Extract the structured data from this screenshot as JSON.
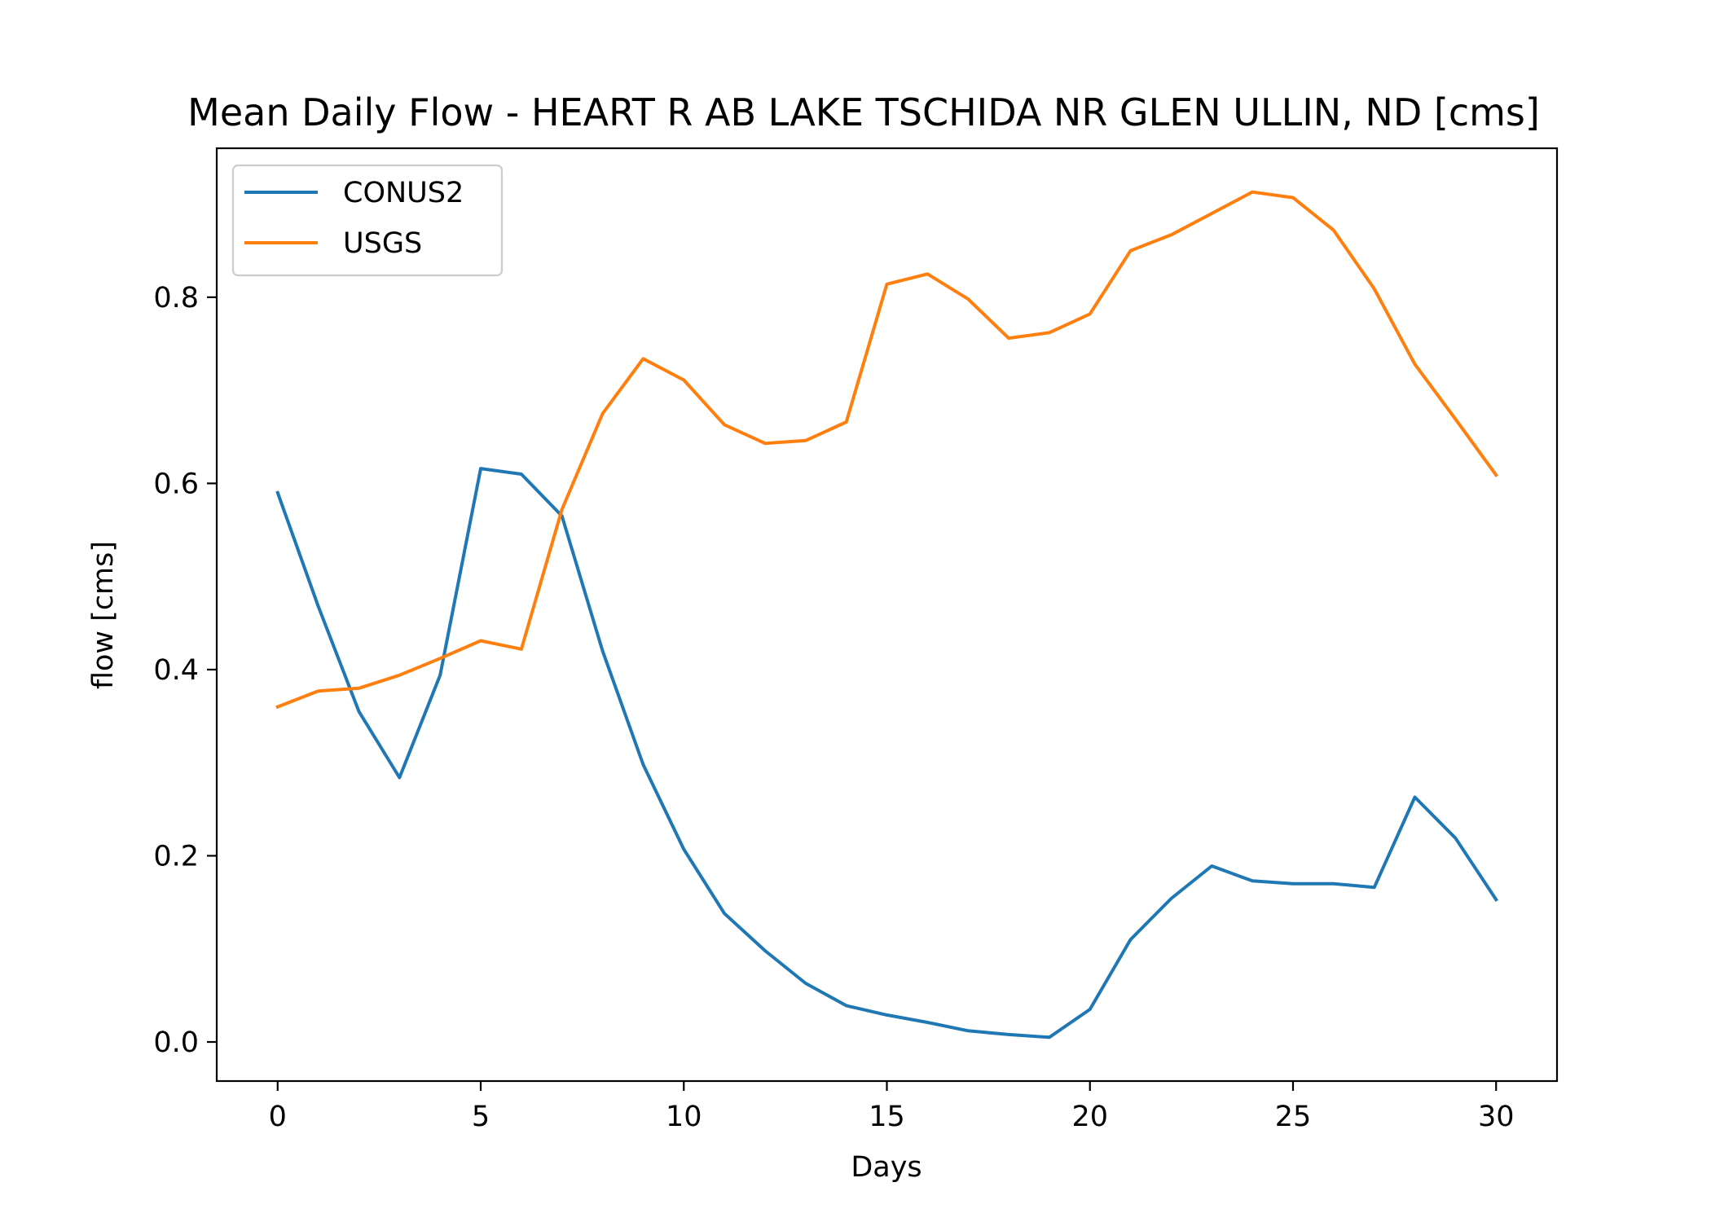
{
  "chart_data": {
    "type": "line",
    "title": "Mean Daily Flow - HEART R AB LAKE TSCHIDA NR GLEN ULLIN, ND [cms]",
    "xlabel": "Days",
    "ylabel": "flow [cms]",
    "xlim": [
      -1.5,
      31.5
    ],
    "ylim": [
      -0.042,
      0.96
    ],
    "xticks": [
      0,
      5,
      10,
      15,
      20,
      25,
      30
    ],
    "xtick_labels": [
      "0",
      "5",
      "10",
      "15",
      "20",
      "25",
      "30"
    ],
    "yticks": [
      0.0,
      0.2,
      0.4,
      0.6,
      0.8
    ],
    "ytick_labels": [
      "0.0",
      "0.2",
      "0.4",
      "0.6",
      "0.8"
    ],
    "grid": false,
    "legend_position": "top-left",
    "x": [
      0,
      1,
      2,
      3,
      4,
      5,
      6,
      7,
      8,
      9,
      10,
      11,
      12,
      13,
      14,
      15,
      16,
      17,
      18,
      19,
      20,
      21,
      22,
      23,
      24,
      25,
      26,
      27,
      28,
      29,
      30
    ],
    "series": [
      {
        "name": "CONUS2",
        "color": "#1f77b4",
        "values": [
          0.59,
          0.468,
          0.355,
          0.284,
          0.394,
          0.616,
          0.61,
          0.565,
          0.42,
          0.298,
          0.207,
          0.138,
          0.098,
          0.063,
          0.039,
          0.029,
          0.021,
          0.012,
          0.008,
          0.005,
          0.035,
          0.11,
          0.154,
          0.189,
          0.173,
          0.17,
          0.17,
          0.166,
          0.263,
          0.219,
          0.153
        ]
      },
      {
        "name": "USGS",
        "color": "#ff7f0e",
        "values": [
          0.36,
          0.377,
          0.38,
          0.394,
          0.412,
          0.431,
          0.422,
          0.572,
          0.675,
          0.734,
          0.711,
          0.663,
          0.643,
          0.646,
          0.666,
          0.814,
          0.825,
          0.798,
          0.756,
          0.762,
          0.782,
          0.85,
          0.867,
          0.89,
          0.913,
          0.907,
          0.872,
          0.809,
          0.728,
          0.669,
          0.609
        ]
      }
    ]
  }
}
